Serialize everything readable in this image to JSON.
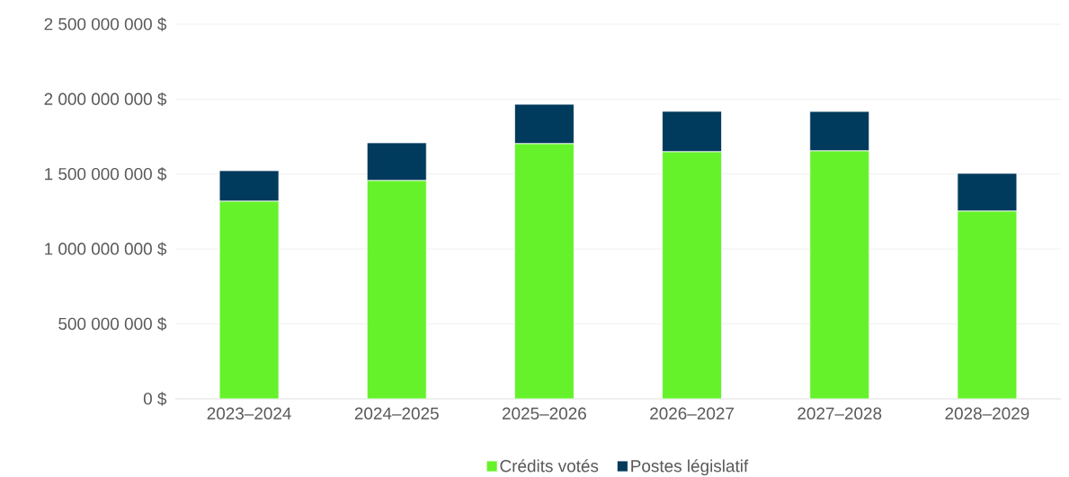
{
  "chart_data": {
    "type": "bar",
    "stacked": true,
    "categories": [
      "2023–2024",
      "2024–2025",
      "2025–2026",
      "2026–2027",
      "2027–2028",
      "2028–2029"
    ],
    "series": [
      {
        "name": "Crédits votés",
        "color": "#66f22b",
        "values": [
          1319000000,
          1457000000,
          1703000000,
          1649000000,
          1655000000,
          1253000000
        ]
      },
      {
        "name": "Postes législatif",
        "color": "#003a5c",
        "values": [
          204000000,
          252000000,
          263000000,
          270000000,
          263000000,
          252000000
        ]
      }
    ],
    "ylim": [
      0,
      2500000000
    ],
    "yticks": [
      {
        "value": 0,
        "label": "0 $"
      },
      {
        "value": 500000000,
        "label": "500 000 000 $"
      },
      {
        "value": 1000000000,
        "label": "1 000 000 000 $"
      },
      {
        "value": 1500000000,
        "label": "1 500 000 000 $"
      },
      {
        "value": 2000000000,
        "label": "2 000 000 000 $"
      },
      {
        "value": 2500000000,
        "label": "2 500 000 000 $"
      }
    ],
    "grid": "y",
    "legend": "bottom"
  }
}
